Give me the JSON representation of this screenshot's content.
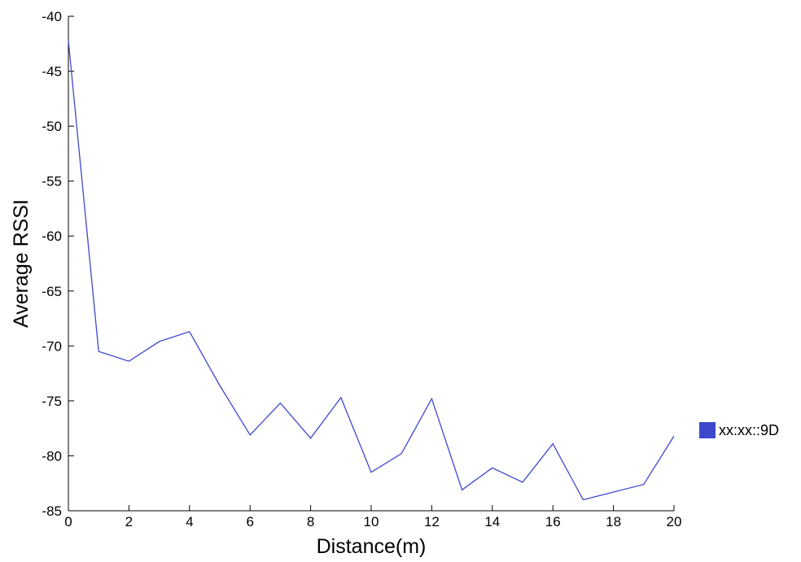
{
  "chart_data": {
    "type": "line",
    "title": "",
    "xlabel": "Distance(m)",
    "ylabel": "Average RSSI",
    "xlim": [
      0,
      20
    ],
    "ylim": [
      -85,
      -40
    ],
    "xticks": [
      0,
      2,
      4,
      6,
      8,
      10,
      12,
      14,
      16,
      18,
      20
    ],
    "yticks": [
      -40,
      -45,
      -50,
      -55,
      -60,
      -65,
      -70,
      -75,
      -80,
      -85
    ],
    "grid": false,
    "legend_position": "right",
    "series": [
      {
        "name": "xx:xx::9D",
        "color": "#3f48cc",
        "x": [
          0,
          1,
          2,
          3,
          4,
          5,
          6,
          7,
          8,
          9,
          10,
          11,
          12,
          13,
          14,
          15,
          16,
          17,
          18,
          19,
          20
        ],
        "y": [
          -42.2,
          -70.5,
          -71.4,
          -69.6,
          -68.7,
          -73.6,
          -78.1,
          -75.2,
          -78.4,
          -74.7,
          -81.5,
          -79.8,
          -74.8,
          -83.1,
          -81.1,
          -82.4,
          -78.9,
          -84.0,
          -83.3,
          -82.6,
          -78.2
        ]
      }
    ]
  }
}
